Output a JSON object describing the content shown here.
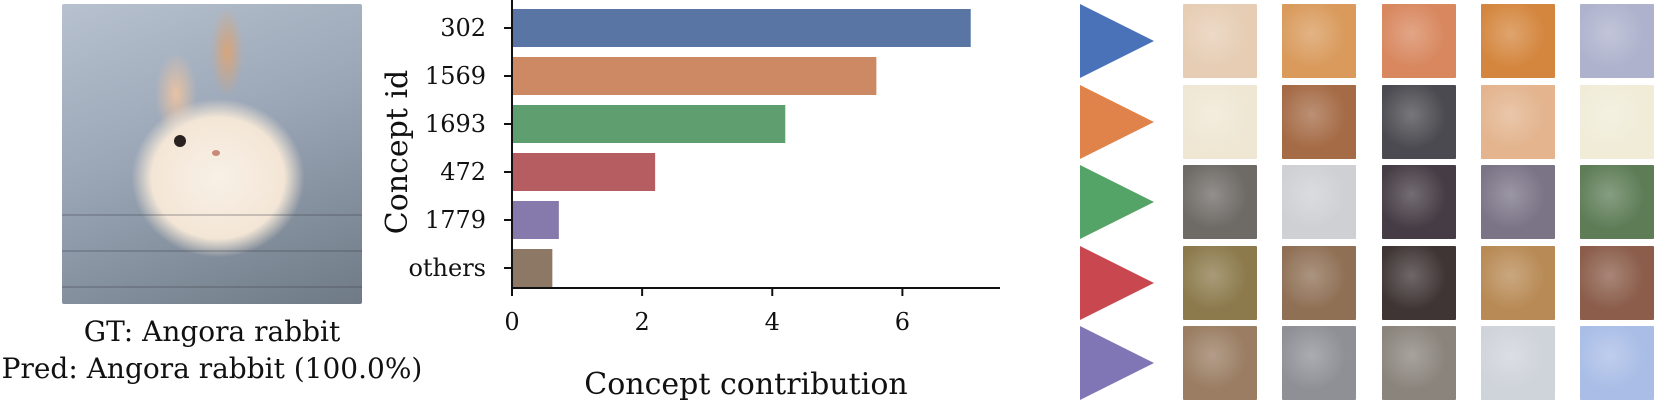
{
  "figure": {
    "gt_label": "GT: Angora rabbit",
    "pred_label": "Pred: Angora rabbit (100.0%)"
  },
  "colors": {
    "302": "#5875a4",
    "1569": "#cc8963",
    "1693": "#5f9e6e",
    "472": "#b55d60",
    "1779": "#857aab",
    "others": "#8d7866"
  },
  "chart_data": {
    "type": "bar",
    "orientation": "horizontal",
    "categories": [
      "302",
      "1569",
      "1693",
      "472",
      "1779",
      "others"
    ],
    "values": [
      7.05,
      5.6,
      4.2,
      2.2,
      0.72,
      0.62
    ],
    "xlabel": "Concept contribution",
    "ylabel": "Concept id",
    "xticks": [
      0,
      2,
      4,
      6
    ],
    "xlim": [
      0,
      7.5
    ],
    "grid": false,
    "legend": null
  },
  "concepts": [
    {
      "id": "302",
      "arrow_color": "#4a72b8",
      "patches": [
        "#e6cdb4",
        "#d99a5c",
        "#d8875e",
        "#d4863e",
        "#aeb2cc"
      ]
    },
    {
      "id": "1569",
      "arrow_color": "#e0834b",
      "patches": [
        "#efe7d4",
        "#a56b46",
        "#4a4a50",
        "#e3b48e",
        "#f0ecd8"
      ]
    },
    {
      "id": "1693",
      "arrow_color": "#55a467",
      "patches": [
        "#6e6a66",
        "#cfd0d4",
        "#463c45",
        "#7a7486",
        "#5e7d57"
      ]
    },
    {
      "id": "472",
      "arrow_color": "#c9474e",
      "patches": [
        "#8c7a4c",
        "#8f7055",
        "#3f3535",
        "#b88a55",
        "#8b5d4a"
      ]
    },
    {
      "id": "1779",
      "arrow_color": "#8176b5",
      "patches": [
        "#9a7d62",
        "#8e9096",
        "#8a847c",
        "#cfd3da",
        "#a9bde6"
      ]
    }
  ]
}
